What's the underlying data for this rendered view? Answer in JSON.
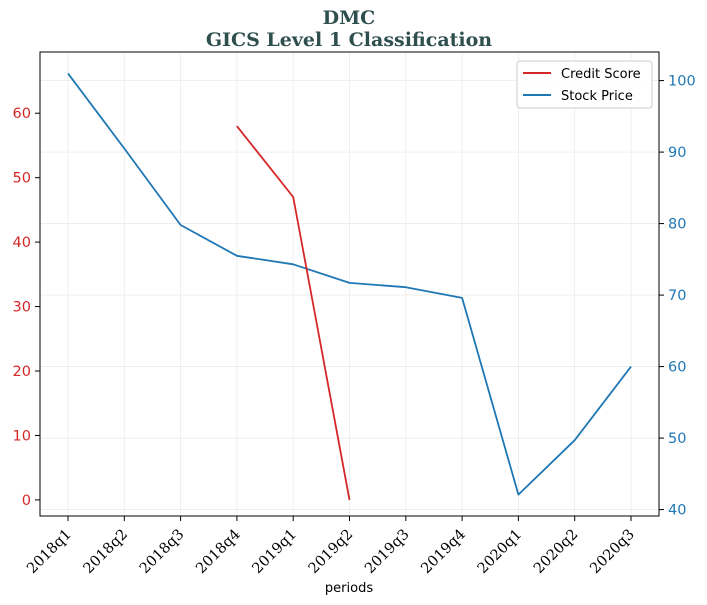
{
  "chart_data": {
    "type": "line",
    "title": "DMC",
    "subtitle": "GICS Level 1 Classification",
    "xlabel": "periods",
    "categories": [
      "2018q1",
      "2018q2",
      "2018q3",
      "2018q4",
      "2019q1",
      "2019q2",
      "2019q3",
      "2019q4",
      "2020q1",
      "2020q2",
      "2020q3"
    ],
    "series": [
      {
        "name": "Credit Score",
        "axis": "left",
        "color": "#d62728",
        "values": [
          null,
          null,
          null,
          58,
          47,
          0,
          null,
          null,
          null,
          null,
          null
        ]
      },
      {
        "name": "Stock Price",
        "axis": "right",
        "color": "#1f77b4",
        "values": [
          101,
          90.5,
          79.8,
          75.5,
          74.3,
          71.7,
          71.1,
          69.6,
          42.1,
          49.7,
          60.0
        ]
      }
    ],
    "left_axis": {
      "ylim": [
        -2.5,
        69.5
      ],
      "ticks": [
        0,
        10,
        20,
        30,
        40,
        50,
        60
      ],
      "color": "#d62728"
    },
    "right_axis": {
      "ylim": [
        39.1,
        104.0
      ],
      "ticks": [
        40,
        50,
        60,
        70,
        80,
        90,
        100
      ],
      "color": "#1f77b4"
    },
    "grid": true,
    "legend_position": "top-right"
  }
}
